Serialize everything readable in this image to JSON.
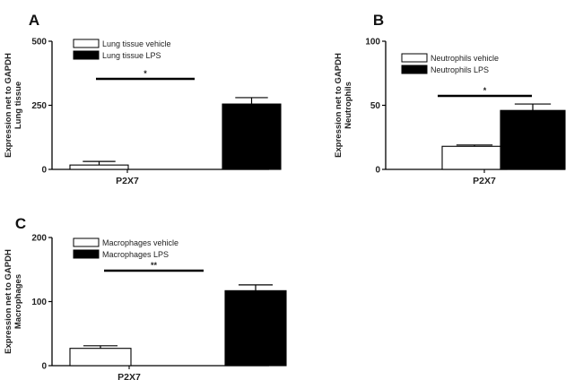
{
  "chart_data": [
    {
      "type": "bar",
      "panel_label": "A",
      "ylabel": [
        "Expression net to GAPDH",
        "Lung tissue"
      ],
      "xlabel": "P2X7",
      "ylim": [
        0,
        500
      ],
      "yticks": [
        0,
        250,
        500
      ],
      "legend_placement": "top-left",
      "series": [
        {
          "name": "Lung tissue vehicle",
          "value": 17,
          "error": 14,
          "fill": "#ffffff"
        },
        {
          "name": "Lung tissue LPS",
          "value": 255,
          "error": 25,
          "fill": "#000000"
        }
      ],
      "significance": "*"
    },
    {
      "type": "bar",
      "panel_label": "B",
      "ylabel": [
        "Expression net to GAPDH",
        "Neutrophils"
      ],
      "xlabel": "P2X7",
      "ylim": [
        0,
        100
      ],
      "yticks": [
        0,
        50,
        100
      ],
      "legend_placement": "top-left",
      "series": [
        {
          "name": "Neutrophils vehicle",
          "value": 18,
          "error": 1,
          "fill": "#ffffff"
        },
        {
          "name": "Neutrophils LPS",
          "value": 46,
          "error": 5,
          "fill": "#000000"
        }
      ],
      "significance": "*"
    },
    {
      "type": "bar",
      "panel_label": "C",
      "ylabel": [
        "Expression net to GAPDH",
        "Macrophages"
      ],
      "xlabel": "P2X7",
      "ylim": [
        0,
        200
      ],
      "yticks": [
        0,
        100,
        200
      ],
      "legend_placement": "top-left",
      "series": [
        {
          "name": "Macrophages vehicle",
          "value": 27,
          "error": 4,
          "fill": "#ffffff"
        },
        {
          "name": "Macrophages LPS",
          "value": 117,
          "error": 9,
          "fill": "#000000"
        }
      ],
      "significance": "**"
    }
  ]
}
